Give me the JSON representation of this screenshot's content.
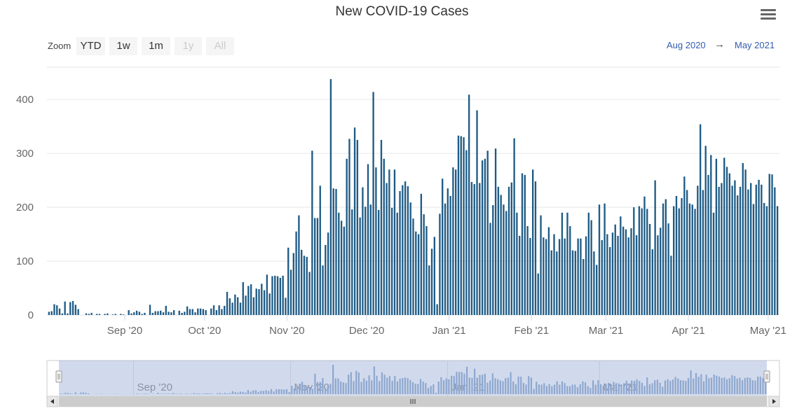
{
  "chart_data": {
    "type": "bar",
    "title": "New COVID-19 Cases",
    "xlabel": "",
    "ylabel": "",
    "ylim": [
      0,
      460
    ],
    "y_ticks": [
      0,
      100,
      200,
      300,
      400
    ],
    "x_tick_labels": [
      "Sep '20",
      "Oct '20",
      "Nov '20",
      "Dec '20",
      "Jan '21",
      "Feb '21",
      "Mar '21",
      "Apr '21",
      "May '21"
    ],
    "navigator_labels": [
      "Sep '20",
      "Nov '20",
      "Jan '21",
      "Mar '21"
    ],
    "date_start": "2020-08-03",
    "color": "#1f5b85",
    "grid": true,
    "series": [
      {
        "values": [
          6,
          7,
          20,
          18,
          12,
          3,
          25,
          3,
          24,
          26,
          19,
          11,
          0,
          0,
          3,
          2,
          4,
          0,
          2,
          2,
          0,
          2,
          3,
          0,
          1,
          2,
          0,
          2,
          1,
          0,
          9,
          3,
          5,
          8,
          6,
          2,
          4,
          0,
          19,
          4,
          7,
          7,
          8,
          5,
          17,
          6,
          5,
          9,
          0,
          8,
          4,
          6,
          16,
          11,
          11,
          5,
          12,
          12,
          11,
          9,
          0,
          12,
          18,
          9,
          18,
          11,
          17,
          43,
          31,
          23,
          38,
          33,
          23,
          61,
          36,
          54,
          57,
          33,
          49,
          48,
          58,
          46,
          75,
          40,
          72,
          73,
          72,
          69,
          73,
          32,
          125,
          84,
          115,
          155,
          185,
          121,
          110,
          108,
          80,
          305,
          180,
          180,
          240,
          92,
          130,
          153,
          438,
          235,
          234,
          190,
          175,
          164,
          290,
          327,
          196,
          348,
          325,
          181,
          237,
          201,
          280,
          205,
          414,
          274,
          195,
          325,
          290,
          245,
          270,
          199,
          270,
          190,
          230,
          241,
          248,
          239,
          209,
          179,
          155,
          150,
          225,
          187,
          165,
          92,
          123,
          145,
          20,
          188,
          253,
          207,
          235,
          221,
          274,
          270,
          333,
          332,
          330,
          306,
          409,
          247,
          243,
          380,
          245,
          287,
          290,
          305,
          171,
          204,
          309,
          238,
          223,
          205,
          193,
          238,
          246,
          328,
          190,
          147,
          263,
          260,
          165,
          143,
          270,
          248,
          77,
          185,
          144,
          141,
          163,
          120,
          150,
          118,
          141,
          190,
          142,
          190,
          165,
          120,
          119,
          142,
          142,
          104,
          146,
          190,
          176,
          118,
          93,
          205,
          139,
          207,
          150,
          126,
          153,
          168,
          147,
          183,
          164,
          159,
          144,
          161,
          200,
          148,
          202,
          198,
          220,
          197,
          169,
          122,
          250,
          148,
          162,
          207,
          215,
          170,
          110,
          202,
          221,
          198,
          217,
          257,
          232,
          207,
          205,
          197,
          240,
          354,
          232,
          314,
          260,
          297,
          190,
          290,
          238,
          245,
          292,
          275,
          263,
          240,
          250,
          222,
          238,
          282,
          270,
          233,
          245,
          206,
          242,
          251,
          242,
          208,
          202,
          262,
          261,
          237,
          202
        ]
      }
    ]
  },
  "ui": {
    "zoom_label": "Zoom",
    "zoom_buttons": [
      "YTD",
      "1w",
      "1m",
      "1y",
      "All"
    ],
    "range_from": "Aug 2020",
    "range_arrow": "→",
    "range_to": "May 2021"
  }
}
